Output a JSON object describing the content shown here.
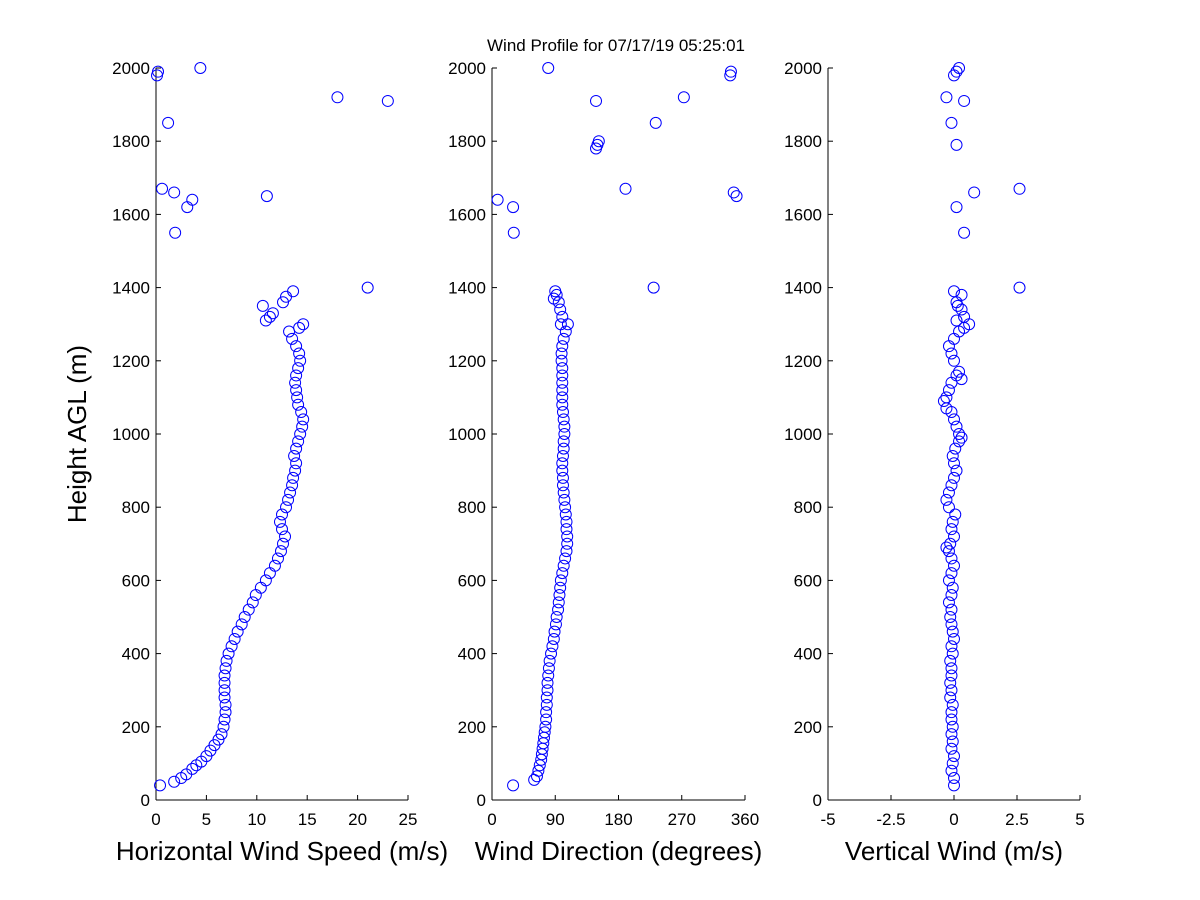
{
  "title": "Wind Profile for  07/17/19 05:25:01",
  "colors": {
    "marker": "#0000ff",
    "axis": "#000000",
    "background": "#ffffff"
  },
  "chart_data": [
    {
      "type": "scatter",
      "xlabel": "Horizontal Wind Speed (m/s)",
      "ylabel": "Height AGL (m)",
      "xlim": [
        0,
        25
      ],
      "ylim": [
        0,
        2000
      ],
      "xticks": [
        "0",
        "5",
        "10",
        "15",
        "20",
        "25"
      ],
      "yticks": [
        "0",
        "200",
        "400",
        "600",
        "800",
        "1000",
        "1200",
        "1400",
        "1600",
        "1800",
        "2000"
      ],
      "grid": false,
      "points": [
        [
          0.4,
          40
        ],
        [
          1.8,
          50
        ],
        [
          2.5,
          60
        ],
        [
          3,
          70
        ],
        [
          3.6,
          85
        ],
        [
          4,
          95
        ],
        [
          4.5,
          105
        ],
        [
          5,
          120
        ],
        [
          5.4,
          135
        ],
        [
          5.8,
          150
        ],
        [
          6.2,
          165
        ],
        [
          6.5,
          180
        ],
        [
          6.7,
          200
        ],
        [
          6.8,
          220
        ],
        [
          6.9,
          240
        ],
        [
          6.9,
          260
        ],
        [
          6.8,
          280
        ],
        [
          6.8,
          300
        ],
        [
          6.8,
          320
        ],
        [
          6.8,
          340
        ],
        [
          6.9,
          360
        ],
        [
          7,
          380
        ],
        [
          7.2,
          400
        ],
        [
          7.5,
          420
        ],
        [
          7.8,
          440
        ],
        [
          8.1,
          460
        ],
        [
          8.5,
          480
        ],
        [
          8.8,
          500
        ],
        [
          9.2,
          520
        ],
        [
          9.6,
          540
        ],
        [
          9.9,
          560
        ],
        [
          10.4,
          580
        ],
        [
          10.9,
          600
        ],
        [
          11.3,
          620
        ],
        [
          11.8,
          640
        ],
        [
          12.1,
          660
        ],
        [
          12.4,
          680
        ],
        [
          12.6,
          700
        ],
        [
          12.8,
          720
        ],
        [
          12.5,
          740
        ],
        [
          12.3,
          760
        ],
        [
          12.5,
          780
        ],
        [
          12.9,
          800
        ],
        [
          13.1,
          820
        ],
        [
          13.3,
          840
        ],
        [
          13.5,
          860
        ],
        [
          13.6,
          880
        ],
        [
          13.8,
          900
        ],
        [
          13.9,
          920
        ],
        [
          13.7,
          940
        ],
        [
          13.9,
          960
        ],
        [
          14.1,
          980
        ],
        [
          14.3,
          1000
        ],
        [
          14.5,
          1020
        ],
        [
          14.6,
          1040
        ],
        [
          14.4,
          1060
        ],
        [
          14.1,
          1080
        ],
        [
          14,
          1100
        ],
        [
          13.9,
          1120
        ],
        [
          13.8,
          1140
        ],
        [
          13.9,
          1160
        ],
        [
          14.1,
          1180
        ],
        [
          14.3,
          1200
        ],
        [
          14.2,
          1220
        ],
        [
          13.9,
          1240
        ],
        [
          13.5,
          1260
        ],
        [
          13.2,
          1280
        ],
        [
          14.2,
          1290
        ],
        [
          14.6,
          1300
        ],
        [
          10.9,
          1310
        ],
        [
          11.3,
          1320
        ],
        [
          11.6,
          1330
        ],
        [
          10.6,
          1350
        ],
        [
          12.6,
          1360
        ],
        [
          12.9,
          1375
        ],
        [
          13.6,
          1390
        ],
        [
          21,
          1400
        ],
        [
          1.9,
          1550
        ],
        [
          3.1,
          1620
        ],
        [
          3.6,
          1640
        ],
        [
          11,
          1650
        ],
        [
          1.8,
          1660
        ],
        [
          0.6,
          1670
        ],
        [
          1.2,
          1850
        ],
        [
          23,
          1910
        ],
        [
          18,
          1920
        ],
        [
          0.1,
          1980
        ],
        [
          0.2,
          1990
        ],
        [
          4.4,
          2000
        ]
      ]
    },
    {
      "type": "scatter",
      "xlabel": "Wind Direction (degrees)",
      "ylabel": "",
      "xlim": [
        0,
        360
      ],
      "ylim": [
        0,
        2000
      ],
      "xticks": [
        "0",
        "90",
        "180",
        "270",
        "360"
      ],
      "yticks": [
        "0",
        "200",
        "400",
        "600",
        "800",
        "1000",
        "1200",
        "1400",
        "1600",
        "1800",
        "2000"
      ],
      "grid": false,
      "points": [
        [
          30,
          40
        ],
        [
          60,
          55
        ],
        [
          64,
          65
        ],
        [
          66,
          80
        ],
        [
          68,
          95
        ],
        [
          70,
          110
        ],
        [
          71,
          125
        ],
        [
          72,
          140
        ],
        [
          73,
          155
        ],
        [
          74,
          170
        ],
        [
          75,
          185
        ],
        [
          76,
          200
        ],
        [
          77,
          220
        ],
        [
          77,
          240
        ],
        [
          78,
          260
        ],
        [
          78,
          280
        ],
        [
          79,
          300
        ],
        [
          79,
          320
        ],
        [
          80,
          340
        ],
        [
          81,
          360
        ],
        [
          82,
          380
        ],
        [
          84,
          400
        ],
        [
          86,
          420
        ],
        [
          88,
          440
        ],
        [
          89,
          460
        ],
        [
          91,
          480
        ],
        [
          92,
          500
        ],
        [
          94,
          520
        ],
        [
          95,
          540
        ],
        [
          96,
          560
        ],
        [
          97,
          580
        ],
        [
          98,
          600
        ],
        [
          100,
          620
        ],
        [
          102,
          640
        ],
        [
          104,
          660
        ],
        [
          106,
          680
        ],
        [
          107,
          700
        ],
        [
          107,
          720
        ],
        [
          106,
          740
        ],
        [
          106,
          760
        ],
        [
          105,
          780
        ],
        [
          104,
          800
        ],
        [
          103,
          820
        ],
        [
          102,
          840
        ],
        [
          101,
          860
        ],
        [
          101,
          880
        ],
        [
          100,
          900
        ],
        [
          100,
          920
        ],
        [
          101,
          940
        ],
        [
          102,
          960
        ],
        [
          102,
          980
        ],
        [
          103,
          1000
        ],
        [
          103,
          1020
        ],
        [
          102,
          1040
        ],
        [
          101,
          1060
        ],
        [
          100,
          1080
        ],
        [
          100,
          1100
        ],
        [
          100,
          1120
        ],
        [
          100,
          1140
        ],
        [
          100,
          1160
        ],
        [
          100,
          1180
        ],
        [
          99,
          1200
        ],
        [
          99,
          1220
        ],
        [
          100,
          1240
        ],
        [
          102,
          1260
        ],
        [
          105,
          1280
        ],
        [
          108,
          1300
        ],
        [
          98,
          1300
        ],
        [
          100,
          1320
        ],
        [
          97,
          1340
        ],
        [
          95,
          1360
        ],
        [
          88,
          1370
        ],
        [
          92,
          1380
        ],
        [
          90,
          1390
        ],
        [
          230,
          1400
        ],
        [
          31,
          1550
        ],
        [
          30,
          1620
        ],
        [
          8,
          1640
        ],
        [
          348,
          1650
        ],
        [
          344,
          1660
        ],
        [
          190,
          1670
        ],
        [
          148,
          1780
        ],
        [
          150,
          1790
        ],
        [
          152,
          1800
        ],
        [
          233,
          1850
        ],
        [
          148,
          1910
        ],
        [
          273,
          1920
        ],
        [
          339,
          1980
        ],
        [
          340,
          1990
        ],
        [
          80,
          2000
        ]
      ]
    },
    {
      "type": "scatter",
      "xlabel": "Vertical Wind (m/s)",
      "ylabel": "",
      "xlim": [
        -5,
        5
      ],
      "ylim": [
        0,
        2000
      ],
      "xticks": [
        "-5",
        "-2.5",
        "0",
        "2.5",
        "5"
      ],
      "yticks": [
        "0",
        "200",
        "400",
        "600",
        "800",
        "1000",
        "1200",
        "1400",
        "1600",
        "1800",
        "2000"
      ],
      "grid": false,
      "points": [
        [
          0,
          40
        ],
        [
          0,
          60
        ],
        [
          -0.1,
          80
        ],
        [
          -0.05,
          100
        ],
        [
          0,
          120
        ],
        [
          -0.1,
          140
        ],
        [
          -0.05,
          160
        ],
        [
          -0.1,
          180
        ],
        [
          -0.05,
          200
        ],
        [
          -0.1,
          220
        ],
        [
          -0.1,
          240
        ],
        [
          -0.05,
          260
        ],
        [
          -0.15,
          280
        ],
        [
          -0.1,
          300
        ],
        [
          -0.15,
          320
        ],
        [
          -0.1,
          340
        ],
        [
          -0.1,
          360
        ],
        [
          -0.15,
          380
        ],
        [
          -0.05,
          400
        ],
        [
          -0.1,
          420
        ],
        [
          0,
          440
        ],
        [
          -0.05,
          460
        ],
        [
          -0.1,
          480
        ],
        [
          -0.15,
          500
        ],
        [
          -0.1,
          520
        ],
        [
          -0.2,
          540
        ],
        [
          -0.1,
          560
        ],
        [
          -0.05,
          580
        ],
        [
          -0.2,
          600
        ],
        [
          -0.1,
          620
        ],
        [
          0,
          640
        ],
        [
          -0.1,
          660
        ],
        [
          -0.2,
          680
        ],
        [
          -0.3,
          690
        ],
        [
          -0.15,
          700
        ],
        [
          0,
          720
        ],
        [
          -0.1,
          740
        ],
        [
          -0.05,
          760
        ],
        [
          0.05,
          780
        ],
        [
          -0.2,
          800
        ],
        [
          -0.3,
          820
        ],
        [
          -0.2,
          840
        ],
        [
          -0.1,
          860
        ],
        [
          0,
          880
        ],
        [
          0.1,
          900
        ],
        [
          0,
          920
        ],
        [
          -0.05,
          940
        ],
        [
          0.05,
          960
        ],
        [
          0.2,
          980
        ],
        [
          0.3,
          990
        ],
        [
          0.2,
          1000
        ],
        [
          0.1,
          1020
        ],
        [
          0,
          1040
        ],
        [
          -0.1,
          1060
        ],
        [
          -0.3,
          1070
        ],
        [
          -0.4,
          1090
        ],
        [
          -0.3,
          1100
        ],
        [
          -0.2,
          1120
        ],
        [
          -0.1,
          1140
        ],
        [
          0.1,
          1160
        ],
        [
          0.2,
          1170
        ],
        [
          0.3,
          1150
        ],
        [
          0,
          1200
        ],
        [
          -0.1,
          1220
        ],
        [
          -0.2,
          1240
        ],
        [
          0,
          1260
        ],
        [
          0.2,
          1280
        ],
        [
          0.4,
          1290
        ],
        [
          0.6,
          1300
        ],
        [
          0.1,
          1310
        ],
        [
          0.4,
          1320
        ],
        [
          0.3,
          1340
        ],
        [
          0.15,
          1350
        ],
        [
          0.1,
          1360
        ],
        [
          0.3,
          1380
        ],
        [
          0,
          1390
        ],
        [
          2.6,
          1400
        ],
        [
          0.4,
          1550
        ],
        [
          0.1,
          1620
        ],
        [
          0.8,
          1660
        ],
        [
          2.6,
          1670
        ],
        [
          0.1,
          1790
        ],
        [
          -0.1,
          1850
        ],
        [
          0.4,
          1910
        ],
        [
          -0.3,
          1920
        ],
        [
          0,
          1980
        ],
        [
          0.1,
          1990
        ],
        [
          0.2,
          2000
        ]
      ]
    }
  ]
}
